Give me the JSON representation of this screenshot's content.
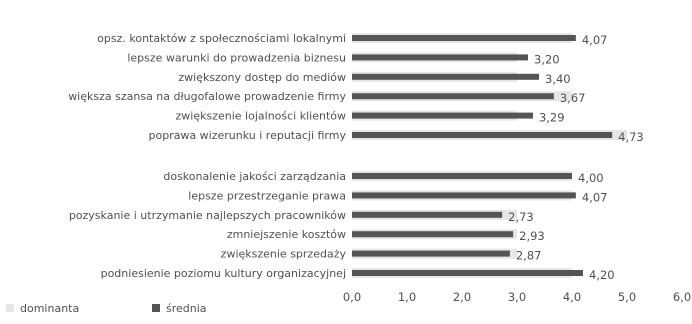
{
  "chart_data": {
    "type": "bar",
    "orientation": "horizontal",
    "xlim": [
      0,
      6
    ],
    "xticks": [
      "0,0",
      "1,0",
      "2,0",
      "3,0",
      "4,0",
      "5,0",
      "6,0"
    ],
    "grid": false,
    "legend_position": "bottom-left",
    "groups": [
      {
        "categories": [
          "opsz. kontaktów z społecznościami lokalnymi",
          "lepsze warunki do prowadzenia biznesu",
          "zwiększony dostęp do mediów",
          "większa szansa na długofalowe prowadzenie firmy",
          "zwiększenie lojalności klientów",
          "poprawa wizerunku i reputacji firmy"
        ],
        "values": [
          4.07,
          3.2,
          3.4,
          3.67,
          3.29,
          4.73
        ],
        "value_labels": [
          "4,07",
          "3,20",
          "3,40",
          "3,67",
          "3,29",
          "4,73"
        ],
        "dominanta": [
          4,
          3,
          3,
          4,
          3,
          5
        ]
      },
      {
        "categories": [
          "doskonalenie jakości zarządzania",
          "lepsze przestrzeganie prawa",
          "pozyskanie i utrzymanie najlepszych pracowników",
          "zmniejszenie kosztów",
          "zwiększenie sprzedaży",
          "podniesienie poziomu kultury organizacyjnej"
        ],
        "values": [
          4.0,
          4.07,
          2.73,
          2.93,
          2.87,
          4.2
        ],
        "value_labels": [
          "4,00",
          "4,07",
          "2,73",
          "2,93",
          "2,87",
          "4,20"
        ],
        "dominanta": [
          4,
          4,
          3,
          3,
          3,
          4
        ]
      }
    ],
    "series": [
      {
        "name": "dominanta",
        "color": "#e6e6e6"
      },
      {
        "name": "średnia",
        "color": "#555555"
      }
    ]
  },
  "legend": {
    "dominanta_label": "dominanta",
    "srednia_label": "średnia"
  }
}
